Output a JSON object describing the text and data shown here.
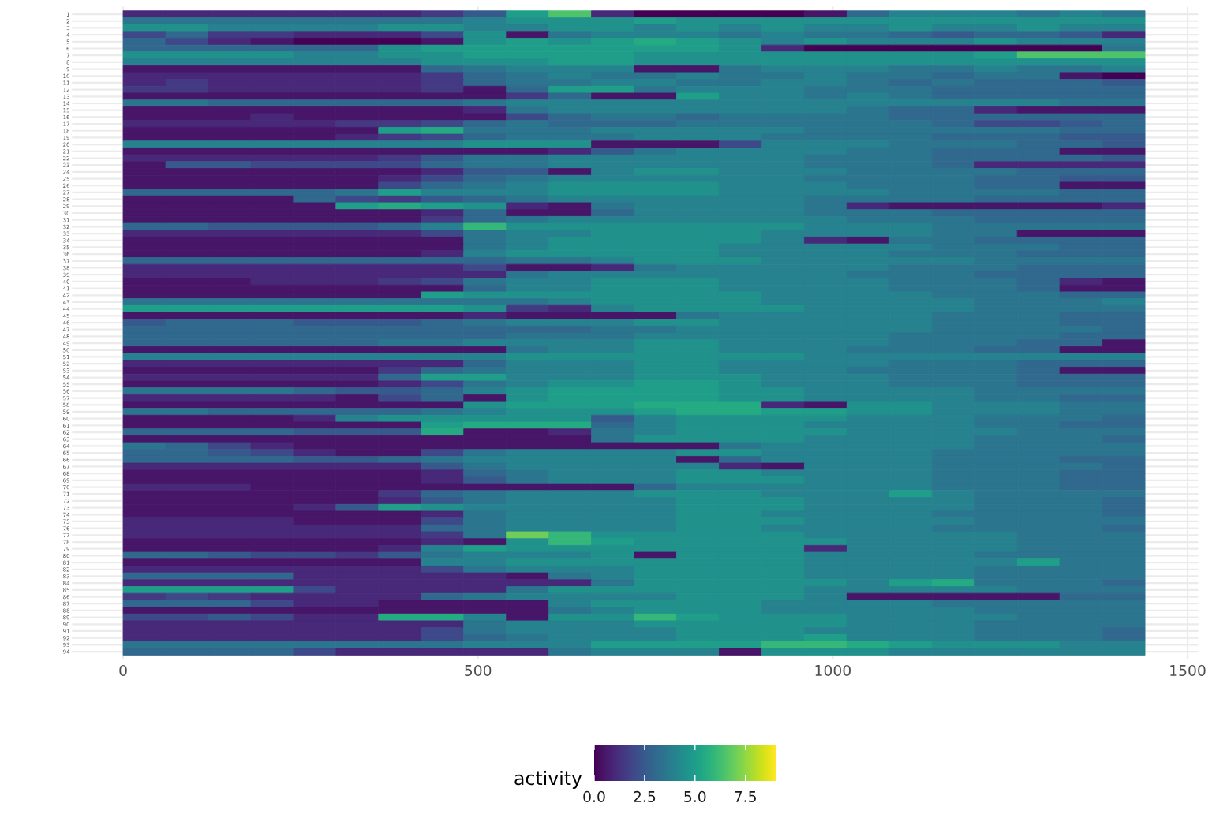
{
  "chart_data": {
    "type": "heatmap",
    "x": [
      30,
      90,
      150,
      210,
      270,
      330,
      390,
      450,
      510,
      570,
      630,
      690,
      750,
      810,
      870,
      930,
      990,
      1050,
      1110,
      1170,
      1230,
      1290,
      1350,
      1410
    ],
    "xlim": [
      -72,
      1515
    ],
    "xticks": [
      0,
      500,
      1000,
      1500
    ],
    "y_categories": [
      "1",
      "2",
      "3",
      "4",
      "5",
      "6",
      "7",
      "8",
      "9",
      "10",
      "11",
      "12",
      "13",
      "14",
      "15",
      "16",
      "17",
      "18",
      "19",
      "20",
      "21",
      "22",
      "23",
      "24",
      "25",
      "26",
      "27",
      "28",
      "29",
      "30",
      "31",
      "32",
      "33",
      "34",
      "35",
      "36",
      "37",
      "38",
      "39",
      "40",
      "41",
      "42",
      "43",
      "44",
      "45",
      "46",
      "47",
      "48",
      "49",
      "50",
      "51",
      "52",
      "53",
      "54",
      "55",
      "56",
      "57",
      "58",
      "59",
      "60",
      "61",
      "62",
      "63",
      "64",
      "65",
      "66",
      "67",
      "68",
      "69",
      "70",
      "71",
      "72",
      "73",
      "74",
      "75",
      "76",
      "77",
      "78",
      "79",
      "80",
      "81",
      "82",
      "83",
      "84",
      "85",
      "86",
      "87",
      "88",
      "89",
      "90",
      "91",
      "92",
      "93",
      "94"
    ],
    "cells": [
      [
        1,
        1,
        1,
        1,
        1,
        1,
        1,
        1.5,
        2.5,
        5,
        6.5,
        1,
        0,
        0,
        0,
        0,
        0.5,
        3,
        4,
        4,
        4,
        3.5,
        4,
        3.5
      ],
      [
        3.5,
        3.5,
        3.5,
        3.5,
        3.5,
        3.5,
        3.5,
        3.5,
        4,
        4.5,
        4.5,
        4.5,
        5,
        4.5,
        4.5,
        4.5,
        4.5,
        4.5,
        4.5,
        4.5,
        4.5,
        4.5,
        4.5,
        4.5
      ],
      [
        4.5,
        4.5,
        4,
        4,
        4,
        4,
        4.5,
        4.5,
        4,
        4,
        4.5,
        4.5,
        4,
        4.5,
        4,
        4.5,
        4,
        4,
        4.5,
        4,
        4,
        4.5,
        4,
        4
      ],
      [
        2,
        3,
        1.5,
        1.5,
        1,
        1,
        1,
        2,
        4.5,
        0.5,
        3.5,
        4,
        4,
        4,
        3.5,
        4,
        3.5,
        3.5,
        3,
        2.5,
        3,
        3,
        2.5,
        1
      ],
      [
        3,
        2,
        1,
        0.5,
        0,
        0,
        0,
        0.5,
        4.5,
        5,
        4.5,
        5,
        5.5,
        5,
        4.5,
        4,
        4.5,
        4,
        4,
        4,
        4.5,
        4,
        4,
        4
      ],
      [
        3,
        3,
        3,
        3,
        3,
        3,
        4.5,
        5,
        5,
        5,
        5,
        5,
        5,
        5,
        4.5,
        1,
        0,
        0,
        0,
        0,
        0,
        0,
        0,
        3.5
      ],
      [
        4.5,
        4.5,
        4.5,
        4.5,
        4,
        4,
        4.5,
        4.5,
        5,
        5,
        5,
        5,
        4.5,
        4.5,
        4.5,
        4.5,
        4.5,
        4.5,
        4.5,
        4.5,
        5,
        6.5,
        6.5,
        6.5
      ],
      [
        4,
        4,
        4,
        4,
        4,
        4,
        4,
        4.5,
        4.5,
        4.5,
        5,
        5,
        4.5,
        4.5,
        4.5,
        4.5,
        4.5,
        4.5,
        4.5,
        4.5,
        4.5,
        4.5,
        4.5,
        4.5
      ],
      [
        0.5,
        0.5,
        0.5,
        0.5,
        0.5,
        0.5,
        0.5,
        3,
        3.5,
        4,
        4,
        4,
        0.5,
        0.5,
        3.5,
        4,
        4,
        4,
        3.5,
        3.5,
        4,
        3.5,
        3.5,
        4
      ],
      [
        1,
        1,
        1,
        1,
        1,
        1,
        1,
        1.5,
        3,
        3.5,
        4,
        3.5,
        3.5,
        4,
        3.5,
        3.5,
        4,
        3.5,
        3.5,
        3,
        3.5,
        3.5,
        0.5,
        0
      ],
      [
        1,
        1.5,
        1,
        1,
        1,
        1,
        1,
        1.5,
        3,
        3.5,
        3.5,
        4,
        4,
        3.5,
        3.5,
        4,
        4,
        3.5,
        3,
        3.5,
        3,
        3,
        3,
        2.5
      ],
      [
        1.5,
        1.5,
        1,
        1,
        1,
        1,
        1,
        1.5,
        0.5,
        3,
        5,
        5,
        3.5,
        4,
        4,
        4,
        3.5,
        3.5,
        3.5,
        3,
        3,
        3,
        3,
        3
      ],
      [
        0.5,
        0.5,
        0.5,
        0.5,
        0.5,
        0.5,
        0.5,
        0.5,
        0.5,
        1.5,
        3,
        0.5,
        0.5,
        5,
        4,
        4,
        3.5,
        4,
        3.5,
        3,
        3,
        3,
        3,
        3
      ],
      [
        3.5,
        3.5,
        3,
        3,
        3,
        3,
        3,
        3,
        3.5,
        4,
        4,
        4,
        4,
        4,
        4,
        4,
        4,
        4,
        4,
        4,
        4,
        4,
        3.5,
        3.5
      ],
      [
        0.5,
        0.5,
        0.5,
        0.5,
        0.5,
        0.5,
        0.5,
        0.5,
        1,
        3.5,
        4,
        4,
        4,
        4,
        4,
        4,
        4,
        3.5,
        3,
        3,
        1,
        0.5,
        0.5,
        0.5
      ],
      [
        0.5,
        0.5,
        0.5,
        1,
        0.5,
        0.5,
        0.5,
        0.5,
        0.5,
        2,
        3,
        3.5,
        3.5,
        3,
        3.5,
        3.5,
        3.5,
        3.5,
        3,
        3,
        3,
        3,
        3,
        3
      ],
      [
        1,
        1,
        1,
        1,
        1,
        1.5,
        1.5,
        2,
        3,
        3.5,
        3,
        3,
        3,
        3.5,
        3.5,
        3.5,
        3.5,
        3.5,
        3.5,
        3,
        2,
        2,
        2.5,
        3
      ],
      [
        0.5,
        0.5,
        0.5,
        0.5,
        0.5,
        0.5,
        5,
        5.5,
        3.5,
        3.5,
        3.5,
        4,
        4,
        4,
        4,
        4,
        3.5,
        3.5,
        3.5,
        3.5,
        3.5,
        3.5,
        3,
        3
      ],
      [
        0.5,
        0.5,
        0.5,
        0.5,
        0.5,
        1,
        1.5,
        2,
        3,
        3.5,
        3.5,
        3.5,
        4,
        4,
        4,
        3.5,
        3.5,
        3.5,
        3.5,
        3,
        3,
        3,
        2.5,
        2.5
      ],
      [
        4,
        4,
        4,
        4,
        4,
        4,
        4,
        4,
        4.5,
        4.5,
        4.5,
        0.5,
        0.5,
        0.5,
        2,
        4,
        4,
        4,
        3.5,
        3.5,
        3.5,
        3,
        3,
        2.5
      ],
      [
        0.5,
        0.5,
        0.5,
        0.5,
        0.5,
        0.5,
        0.5,
        0.5,
        0.5,
        0.5,
        1,
        2.5,
        3.5,
        4,
        4,
        4,
        4,
        3.5,
        3.5,
        3,
        3,
        3,
        0.5,
        0.5
      ],
      [
        1,
        1,
        1,
        1,
        1,
        1,
        1.5,
        2.5,
        3.5,
        3.5,
        4,
        4,
        4,
        4,
        4,
        4,
        3.5,
        3.5,
        3.5,
        3,
        3,
        3,
        3,
        2.5
      ],
      [
        0.5,
        2.5,
        2.5,
        2,
        2,
        2,
        2,
        3,
        3.5,
        3.5,
        4,
        4,
        4,
        4,
        4,
        4,
        3.5,
        3.5,
        3.5,
        3,
        1,
        1,
        1,
        1
      ],
      [
        0.5,
        0.5,
        0.5,
        0.5,
        0.5,
        0.5,
        0.5,
        1,
        2.5,
        2.5,
        0.5,
        4,
        4.5,
        4.5,
        4,
        4,
        4,
        3.5,
        3.5,
        3.5,
        3.5,
        3,
        3,
        3
      ],
      [
        0.5,
        0.5,
        0.5,
        0.5,
        0.5,
        0.5,
        1,
        2,
        3,
        3.5,
        4,
        4,
        4,
        4,
        4,
        4,
        3.5,
        3.5,
        3.5,
        3.5,
        3,
        3,
        2.5,
        2.5
      ],
      [
        0.5,
        0.5,
        0.5,
        0.5,
        0.5,
        0.5,
        2,
        3,
        3.5,
        4,
        4.5,
        4.5,
        4.5,
        4.5,
        4,
        4,
        4,
        3.5,
        3.5,
        3.5,
        3,
        3,
        0.5,
        0.5
      ],
      [
        3,
        3,
        3,
        3,
        3,
        3.5,
        5,
        4,
        4,
        4,
        4.5,
        4.5,
        4.5,
        4.5,
        4,
        4,
        4,
        4,
        3.5,
        3.5,
        3.5,
        3.5,
        3,
        3
      ],
      [
        0.5,
        0.5,
        0.5,
        0.5,
        3,
        2,
        1.5,
        2.5,
        3,
        3.5,
        4,
        4,
        4,
        4,
        4,
        4,
        3.5,
        3.5,
        3.5,
        3.5,
        3,
        3,
        3,
        3
      ],
      [
        0.5,
        0.5,
        0.5,
        0.5,
        0.5,
        5,
        5.5,
        5,
        4.5,
        1,
        0.5,
        3.5,
        4,
        4,
        4,
        4,
        3.5,
        1,
        0.5,
        0.5,
        0.5,
        0.5,
        0.5,
        1
      ],
      [
        0.5,
        0.5,
        0.5,
        0.5,
        0.5,
        0.5,
        0.5,
        1,
        3,
        0.5,
        0.5,
        3,
        4,
        4,
        4,
        4,
        3.5,
        3.5,
        3.5,
        3,
        3,
        3,
        3,
        3
      ],
      [
        0.5,
        0.5,
        0.5,
        0.5,
        0.5,
        0.5,
        0.5,
        1.5,
        3,
        3.5,
        4,
        4,
        4,
        4,
        4,
        4,
        4,
        3.5,
        3.5,
        3.5,
        3,
        3,
        3,
        3
      ],
      [
        3,
        3,
        2.5,
        2.5,
        2.5,
        2.5,
        3,
        4,
        6,
        4.5,
        4.5,
        4.5,
        4.5,
        4.5,
        4.5,
        4.5,
        4,
        4,
        4,
        3.5,
        3.5,
        3.5,
        3.5,
        3.5
      ],
      [
        1,
        1,
        1,
        1,
        1,
        1,
        1,
        2,
        3.5,
        4,
        4,
        4.5,
        4.5,
        4.5,
        4.5,
        4,
        4,
        4,
        4,
        3.5,
        3.5,
        0.5,
        0.5,
        0.5
      ],
      [
        0.5,
        0.5,
        0.5,
        0.5,
        0.5,
        0.5,
        0.5,
        0.5,
        3.5,
        4,
        4.5,
        4.5,
        4.5,
        4.5,
        4.5,
        4,
        1,
        0.5,
        3.5,
        3.5,
        3,
        3,
        3,
        3
      ],
      [
        0.5,
        0.5,
        0.5,
        0.5,
        0.5,
        0.5,
        0.5,
        0.5,
        3.5,
        4,
        4.5,
        4.5,
        4.5,
        4.5,
        4,
        4,
        4,
        4,
        4,
        3.5,
        3.5,
        3.5,
        3,
        3
      ],
      [
        0.5,
        0.5,
        0.5,
        0.5,
        0.5,
        0.5,
        0.5,
        1,
        4,
        4.5,
        4.5,
        4.5,
        4.5,
        4.5,
        4,
        4,
        4,
        4,
        3.5,
        3.5,
        3.5,
        3,
        3,
        3
      ],
      [
        3,
        3,
        3,
        3,
        3,
        3,
        3,
        3,
        3,
        3.5,
        3.5,
        4,
        4.5,
        4.5,
        4.5,
        4,
        4,
        4,
        4,
        4,
        3.5,
        3.5,
        3.5,
        3.5
      ],
      [
        1,
        1,
        1,
        1,
        1,
        1,
        1,
        1,
        2,
        0.5,
        0.5,
        1,
        3.5,
        4,
        4,
        4,
        4,
        4,
        3.5,
        3.5,
        3.5,
        3,
        3,
        3
      ],
      [
        1,
        1,
        1,
        1,
        1,
        1,
        1,
        1,
        1,
        3.5,
        4,
        4,
        4,
        4,
        4,
        4,
        4,
        3.5,
        3.5,
        3.5,
        3,
        3,
        3,
        3
      ],
      [
        0.5,
        0.5,
        0.5,
        1,
        1,
        1,
        1.5,
        2,
        3.5,
        4,
        4,
        4.5,
        4.5,
        4.5,
        4,
        4,
        4,
        4,
        3.5,
        3.5,
        3.5,
        3,
        1,
        0.5
      ],
      [
        0.5,
        0.5,
        0.5,
        0.5,
        0.5,
        0.5,
        0.5,
        0.5,
        3,
        4,
        4,
        4.5,
        4.5,
        4.5,
        4,
        4,
        4,
        4,
        3.5,
        3.5,
        3.5,
        3,
        0.5,
        0.5
      ],
      [
        0.5,
        0.5,
        0.5,
        0.5,
        0.5,
        0.5,
        0.5,
        5,
        4.5,
        4.5,
        4.5,
        4.5,
        4.5,
        4.5,
        4.5,
        4,
        4,
        4,
        4,
        3.5,
        3.5,
        3.5,
        3,
        3
      ],
      [
        3.5,
        3.5,
        3.5,
        3.5,
        3.5,
        3.5,
        3.5,
        3.5,
        3.5,
        3.5,
        4,
        4.5,
        4.5,
        4.5,
        4.5,
        4,
        4,
        4,
        4,
        4,
        3.5,
        3.5,
        3.5,
        4
      ],
      [
        5,
        5,
        5,
        5,
        5,
        5,
        5,
        5,
        4.5,
        1.5,
        1,
        4,
        4.5,
        4.5,
        4.5,
        4.5,
        4,
        4,
        4,
        4,
        3.5,
        3.5,
        3.5,
        3.5
      ],
      [
        0.5,
        0.5,
        0.5,
        0.5,
        0.5,
        0.5,
        0.5,
        0.5,
        1,
        0.5,
        0.5,
        0.5,
        0.5,
        3.5,
        4,
        4,
        4,
        4,
        4,
        3.5,
        3.5,
        3.5,
        3,
        3
      ],
      [
        2.5,
        3,
        3,
        3,
        2.5,
        2.5,
        2.5,
        3,
        3.5,
        4,
        4,
        4,
        4.5,
        4.5,
        4,
        4,
        4,
        4,
        4,
        3.5,
        3.5,
        3.5,
        3,
        3
      ],
      [
        3,
        3,
        3,
        3,
        3,
        3,
        3,
        3,
        3,
        3,
        3,
        3.5,
        3.5,
        4,
        4,
        4,
        4,
        4,
        4,
        3.5,
        3.5,
        3.5,
        3.5,
        3
      ],
      [
        3,
        3,
        3,
        3,
        3,
        3,
        3,
        3,
        3,
        3.5,
        3.5,
        3.5,
        4,
        4,
        4,
        4,
        4,
        4,
        3.5,
        3.5,
        3.5,
        3.5,
        3,
        3
      ],
      [
        3,
        3,
        3,
        3,
        3,
        3,
        3.5,
        3.5,
        4,
        4,
        4,
        4,
        4.5,
        4.5,
        4,
        4,
        4,
        4,
        3.5,
        3.5,
        3.5,
        3,
        3,
        0.5
      ],
      [
        0.5,
        0.5,
        0.5,
        0.5,
        0.5,
        0.5,
        0.5,
        0.5,
        0.5,
        3.5,
        4,
        4,
        4.5,
        4.5,
        4,
        4,
        4,
        3.5,
        3.5,
        3.5,
        3,
        3,
        0.5,
        0.5
      ],
      [
        4,
        4,
        4,
        4,
        4,
        4,
        4,
        4,
        4,
        4.5,
        4.5,
        4.5,
        4.5,
        4.5,
        4.5,
        4.5,
        4,
        4,
        4,
        4,
        4,
        4,
        4,
        4
      ],
      [
        1,
        1,
        1,
        1,
        1,
        1,
        1,
        1,
        3,
        4,
        4,
        4,
        4.5,
        4.5,
        4,
        4,
        4,
        4,
        3.5,
        3.5,
        3.5,
        3,
        3,
        3
      ],
      [
        0.5,
        0.5,
        0.5,
        0.5,
        0.5,
        0.5,
        1.5,
        3,
        3.5,
        4,
        4,
        4,
        4.5,
        4.5,
        4,
        4,
        4,
        3.5,
        3.5,
        3.5,
        3.5,
        3,
        0.5,
        0.5
      ],
      [
        1,
        1,
        1,
        1,
        1,
        1,
        3,
        5,
        5,
        4,
        4,
        4,
        4.5,
        4.5,
        4.5,
        4,
        4,
        4,
        3.5,
        3.5,
        3.5,
        3,
        3,
        3
      ],
      [
        0.5,
        0.5,
        0.5,
        0.5,
        0.5,
        0.5,
        1,
        2,
        3.5,
        4,
        4.5,
        4.5,
        5,
        5,
        4.5,
        4,
        4,
        4,
        3.5,
        3.5,
        3.5,
        3,
        3,
        3
      ],
      [
        3.5,
        3.5,
        3.5,
        3.5,
        3,
        2.5,
        2.5,
        3,
        4,
        4.5,
        5,
        5,
        5,
        5,
        4.5,
        4.5,
        4,
        4,
        4,
        4,
        3.5,
        3.5,
        3.5,
        3.5
      ],
      [
        1,
        1,
        1,
        1,
        1,
        0.5,
        2,
        3,
        0.5,
        4.5,
        5,
        5,
        5,
        5,
        4.5,
        4.5,
        4,
        4,
        4,
        4,
        3.5,
        3.5,
        3,
        3
      ],
      [
        0.5,
        0.5,
        0.5,
        0.5,
        0.5,
        0.5,
        0.5,
        0.5,
        4.5,
        5,
        5,
        5,
        5.5,
        5.5,
        5.5,
        1,
        0.5,
        4.5,
        4.5,
        4,
        4,
        4,
        3.5,
        3.5
      ],
      [
        3.5,
        3.5,
        3,
        3,
        3,
        3,
        3,
        3.5,
        4,
        4.5,
        4.5,
        4.5,
        5,
        5.5,
        5.5,
        5,
        5,
        4.5,
        4.5,
        4,
        4,
        4,
        3.5,
        3.5
      ],
      [
        0.5,
        0.5,
        0.5,
        0.5,
        1,
        4,
        4.5,
        4.5,
        4.5,
        4.5,
        4.5,
        2.5,
        4,
        4.5,
        4.5,
        4.5,
        4.5,
        4,
        4,
        4,
        3.5,
        3.5,
        3.5,
        3
      ],
      [
        0.5,
        0.5,
        0.5,
        0.5,
        0.5,
        0.5,
        0.5,
        5,
        5.5,
        5.5,
        5.5,
        3,
        4,
        4.5,
        4.5,
        4.5,
        4,
        4,
        4,
        4,
        3.5,
        3.5,
        3,
        3
      ],
      [
        3,
        3,
        3,
        3,
        2.5,
        2.5,
        2.5,
        5.5,
        0.5,
        0.5,
        1,
        3.5,
        4,
        4.5,
        4.5,
        4.5,
        4.5,
        4,
        4,
        4,
        4,
        3.5,
        3.5,
        3.5
      ],
      [
        0.5,
        0.5,
        0.5,
        0.5,
        0.5,
        0.5,
        0.5,
        0.5,
        0.5,
        0.5,
        0.5,
        3.5,
        4.5,
        4.5,
        4.5,
        4.5,
        4,
        4,
        4,
        4,
        3.5,
        3.5,
        3.5,
        3
      ],
      [
        3.5,
        3,
        2,
        1,
        0.5,
        0.5,
        0.5,
        0.5,
        0.5,
        0.5,
        0.5,
        0.5,
        0.5,
        0.5,
        3.5,
        4,
        4,
        4,
        4,
        4,
        3.5,
        3.5,
        3.5,
        3.5
      ],
      [
        3,
        3,
        2.5,
        2,
        1,
        0.5,
        0.5,
        2,
        3.5,
        4,
        4,
        4,
        4,
        4.5,
        4.5,
        4,
        4,
        4,
        4,
        3.5,
        3.5,
        3.5,
        3.5,
        3.5
      ],
      [
        3,
        3,
        3,
        3,
        2.5,
        2.5,
        3,
        3.5,
        4,
        4,
        4,
        4,
        4,
        0.5,
        3,
        4,
        4,
        4,
        4,
        3.5,
        3.5,
        3.5,
        3,
        3
      ],
      [
        1,
        1,
        1,
        1,
        1,
        1,
        1,
        2.5,
        3.5,
        4,
        4,
        4,
        4,
        4,
        1,
        0.5,
        4,
        4,
        4,
        3.5,
        3.5,
        3.5,
        3.5,
        3
      ],
      [
        0.5,
        0.5,
        0.5,
        0.5,
        0.5,
        0.5,
        0.5,
        1,
        3,
        3.5,
        4,
        4,
        4,
        4.5,
        4.5,
        4,
        4,
        4,
        4,
        3.5,
        3.5,
        3.5,
        3,
        3
      ],
      [
        0.5,
        0.5,
        0.5,
        0.5,
        0.5,
        0.5,
        0.5,
        1,
        2.5,
        3.5,
        4,
        4,
        4,
        4.5,
        4.5,
        4.5,
        4,
        4,
        4,
        3.5,
        3.5,
        3.5,
        3,
        3
      ],
      [
        1,
        1,
        1,
        0.5,
        0.5,
        0.5,
        0.5,
        0.5,
        0.5,
        0.5,
        0.5,
        0.5,
        3,
        4,
        4,
        4,
        4,
        4,
        4,
        3.5,
        3.5,
        3.5,
        3,
        3
      ],
      [
        0.5,
        0.5,
        0.5,
        0.5,
        0.5,
        0.5,
        1.5,
        3,
        3.5,
        4,
        4,
        4,
        4.5,
        4.5,
        4.5,
        4,
        4,
        4,
        5,
        4,
        3.5,
        3.5,
        3.5,
        3.5
      ],
      [
        0.5,
        0.5,
        0.5,
        0.5,
        0.5,
        0.5,
        1,
        2.5,
        3.5,
        4,
        4,
        4,
        4,
        4.5,
        4.5,
        4.5,
        4,
        4,
        4,
        4,
        3.5,
        3.5,
        3.5,
        3
      ],
      [
        0.5,
        0.5,
        0.5,
        0.5,
        1,
        2.5,
        5,
        4.5,
        4,
        4,
        4,
        4,
        4,
        4.5,
        4.5,
        4.5,
        4,
        4,
        4,
        4,
        3.5,
        3.5,
        3.5,
        3
      ],
      [
        0.5,
        0.5,
        0.5,
        0.5,
        0.5,
        0.5,
        0.5,
        1,
        3.5,
        4,
        4,
        4,
        4,
        4.5,
        4.5,
        4,
        4,
        4,
        4,
        3.5,
        3.5,
        3.5,
        3.5,
        3
      ],
      [
        1,
        1,
        1,
        1,
        0.5,
        0.5,
        0.5,
        2,
        3.5,
        4,
        4,
        4,
        4,
        4.5,
        4.5,
        4.5,
        4,
        4,
        4,
        4,
        3.5,
        3.5,
        3.5,
        3.5
      ],
      [
        1,
        1,
        1,
        1,
        1,
        1,
        1,
        3,
        3.5,
        4,
        4,
        4,
        4,
        4.5,
        4.5,
        4,
        4,
        4,
        4,
        3.5,
        3.5,
        3.5,
        3.5,
        3
      ],
      [
        1,
        1,
        1,
        1,
        1,
        1,
        1,
        1.5,
        3.5,
        7,
        6,
        4.5,
        4.5,
        4.5,
        4.5,
        4.5,
        4,
        4,
        4,
        4,
        4,
        3.5,
        3.5,
        3.5
      ],
      [
        0.5,
        0.5,
        0.5,
        0.5,
        0.5,
        0.5,
        0.5,
        1,
        0.5,
        4.5,
        6,
        5,
        4.5,
        4.5,
        4.5,
        4.5,
        4.5,
        4,
        4,
        4,
        4,
        3.5,
        3.5,
        3.5
      ],
      [
        0.5,
        0.5,
        0.5,
        0.5,
        0.5,
        0.5,
        1,
        4,
        5,
        4.5,
        4.5,
        4.5,
        4.5,
        4.5,
        4.5,
        4.5,
        1,
        4,
        4,
        4,
        4,
        3.5,
        3.5,
        3.5
      ],
      [
        3,
        3,
        2.5,
        2,
        2,
        1.5,
        2.5,
        3.5,
        4,
        4,
        4,
        4.5,
        0.5,
        4.5,
        4.5,
        4.5,
        4,
        4,
        4,
        4,
        3.5,
        3.5,
        3.5,
        3.5
      ],
      [
        0.5,
        0.5,
        0.5,
        0.5,
        0.5,
        0.5,
        0.5,
        4,
        4,
        4.5,
        4.5,
        4.5,
        4.5,
        4.5,
        4.5,
        4.5,
        4,
        4,
        4,
        4,
        4,
        5,
        3.5,
        3.5
      ],
      [
        1,
        1,
        1,
        1,
        1,
        1,
        1,
        2,
        3.5,
        4,
        4,
        4,
        4.5,
        4.5,
        4.5,
        4.5,
        4,
        4,
        4,
        4,
        3.5,
        3.5,
        3.5,
        3.5
      ],
      [
        3,
        3,
        3,
        3,
        1,
        1,
        1,
        1,
        1,
        0.5,
        3.5,
        4,
        4.5,
        4.5,
        4.5,
        4.5,
        4,
        4,
        4,
        4,
        3.5,
        3.5,
        3.5,
        3.5
      ],
      [
        1,
        1,
        1,
        1,
        1,
        1,
        1,
        1,
        1,
        1,
        1,
        3.5,
        4.5,
        4.5,
        4.5,
        4.5,
        4.5,
        4,
        5,
        5.5,
        3.5,
        3.5,
        3.5,
        3
      ],
      [
        5,
        5,
        5,
        5,
        2,
        1,
        1,
        1,
        1,
        3.5,
        4.5,
        4.5,
        4.5,
        4.5,
        4.5,
        4.5,
        4,
        4,
        4,
        4,
        4,
        3.5,
        3.5,
        3.5
      ],
      [
        1.5,
        2,
        1.5,
        1,
        1,
        1,
        1,
        3,
        3.5,
        4,
        4,
        4,
        4,
        4.5,
        4.5,
        4.5,
        4,
        0.5,
        0.5,
        0.5,
        0.5,
        0.5,
        3,
        3
      ],
      [
        3,
        3,
        3,
        2,
        1,
        1,
        0.5,
        0.5,
        0.5,
        0.5,
        4,
        4.5,
        4.5,
        4.5,
        4.5,
        4,
        4,
        4,
        4,
        3.5,
        3.5,
        3.5,
        3.5,
        3.5
      ],
      [
        0.5,
        0.5,
        0.5,
        0.5,
        0.5,
        0.5,
        0.5,
        0.5,
        0.5,
        0.5,
        3.5,
        4,
        4.5,
        4.5,
        4.5,
        4,
        4,
        4,
        4,
        4,
        3.5,
        3.5,
        3.5,
        3.5
      ],
      [
        2,
        2,
        2.5,
        2,
        1,
        1,
        5.5,
        5.5,
        4,
        0.5,
        4.5,
        4.5,
        6,
        5,
        4.5,
        4.5,
        4.5,
        4,
        4,
        4,
        4,
        3.5,
        3.5,
        3.5
      ],
      [
        1,
        1,
        1,
        1,
        1,
        1,
        1,
        1,
        3.5,
        4,
        4,
        4,
        4.5,
        4.5,
        4.5,
        4.5,
        4.5,
        4,
        4,
        4,
        3.5,
        3.5,
        3.5,
        3.5
      ],
      [
        1,
        1,
        1,
        1,
        1,
        1,
        1,
        2,
        3.5,
        4,
        4,
        4,
        4,
        4.5,
        4.5,
        4.5,
        4,
        4,
        4,
        4,
        3.5,
        3.5,
        3.5,
        3
      ],
      [
        1,
        1,
        1,
        1,
        1,
        1,
        1,
        2,
        3,
        3.5,
        4,
        4,
        4,
        4.5,
        4.5,
        4.5,
        5,
        4,
        4,
        4,
        3.5,
        3.5,
        3.5,
        3
      ],
      [
        3.5,
        3.5,
        3.5,
        3.5,
        3.5,
        3.5,
        3.5,
        3.5,
        4,
        4,
        4,
        5,
        5,
        5,
        5,
        6,
        6,
        5.5,
        5,
        4.5,
        4.5,
        4.5,
        4,
        4
      ],
      [
        3,
        3,
        3,
        3,
        2,
        1,
        1,
        1,
        1,
        1,
        3.5,
        4,
        4,
        4,
        0.5,
        4.5,
        4.5,
        4.5,
        4,
        4,
        4,
        4,
        4,
        4
      ]
    ],
    "clim": [
      0,
      9.0
    ],
    "cticks": [
      {
        "value": 0,
        "label": "0.0"
      },
      2.5,
      {
        "value": 5,
        "label": "5.0"
      },
      7.5
    ],
    "clabel": "activity",
    "grid": true
  }
}
